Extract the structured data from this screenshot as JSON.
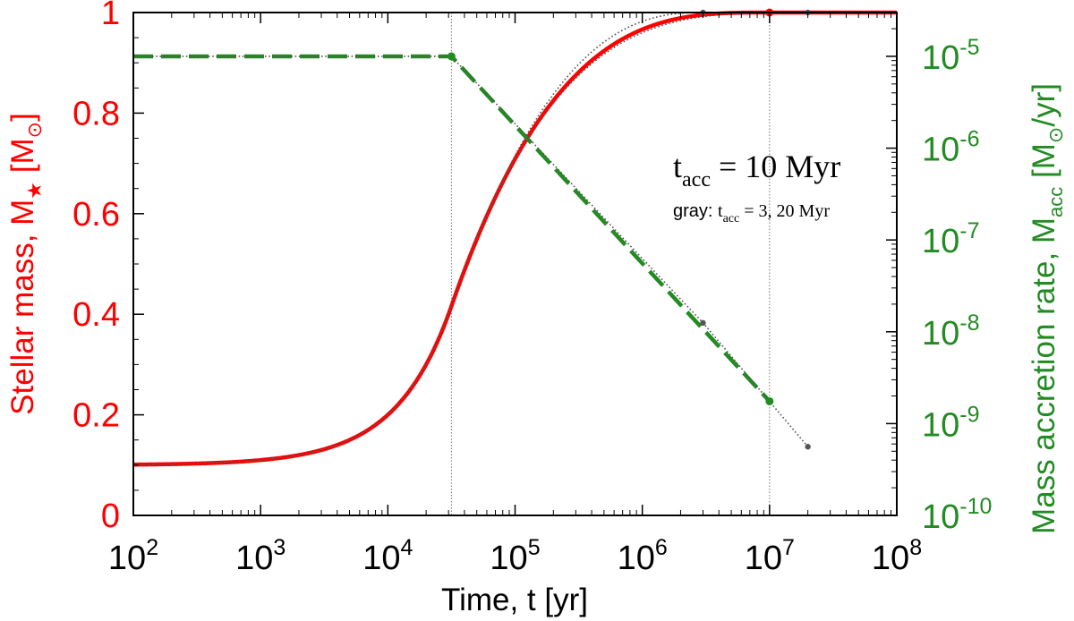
{
  "chart_data": {
    "type": "line",
    "xlabel": "Time, t [yr]",
    "x_scale": "log",
    "xlim": [
      100,
      100000000
    ],
    "x_ticks": [
      {
        "value": 100,
        "base": "10",
        "exp": "2"
      },
      {
        "value": 1000,
        "base": "10",
        "exp": "3"
      },
      {
        "value": 10000,
        "base": "10",
        "exp": "4"
      },
      {
        "value": 100000,
        "base": "10",
        "exp": "5"
      },
      {
        "value": 1000000,
        "base": "10",
        "exp": "6"
      },
      {
        "value": 10000000,
        "base": "10",
        "exp": "7"
      },
      {
        "value": 100000000,
        "base": "10",
        "exp": "8"
      }
    ],
    "y_left": {
      "label_prefix": "Stellar mass, M",
      "label_star": "★",
      "label_unit_open": " [M",
      "label_unit_close": "]",
      "lim": [
        0,
        1
      ],
      "ticks": [
        {
          "value": 0,
          "label": "0"
        },
        {
          "value": 0.2,
          "label": "0.2"
        },
        {
          "value": 0.4,
          "label": "0.4"
        },
        {
          "value": 0.6,
          "label": "0.6"
        },
        {
          "value": 0.8,
          "label": "0.8"
        },
        {
          "value": 1,
          "label": "1"
        }
      ],
      "color": "#ff0000"
    },
    "y_right": {
      "label_prefix": "Mass accretion rate, M",
      "label_sub": "acc",
      "label_unit_open": " [M",
      "label_unit_close": "/yr]",
      "scale": "log",
      "lim": [
        1e-10,
        3e-05
      ],
      "ticks": [
        {
          "value": 1e-10,
          "base": "10",
          "exp": "-10"
        },
        {
          "value": 1e-09,
          "base": "10",
          "exp": "-9"
        },
        {
          "value": 1e-08,
          "base": "10",
          "exp": "-8"
        },
        {
          "value": 1e-07,
          "base": "10",
          "exp": "-7"
        },
        {
          "value": 1e-06,
          "base": "10",
          "exp": "-6"
        },
        {
          "value": 1e-05,
          "base": "10",
          "exp": "-5"
        }
      ],
      "color": "#228b22"
    },
    "series": [
      {
        "name": "Stellar mass (t_acc = 10 Myr)",
        "axis": "left",
        "color": "#ff0000",
        "style": "solid",
        "model": {
          "kind": "mass",
          "M0": 0.1,
          "M1": 1.0,
          "t_start": 31600,
          "t_end": 10000000,
          "Mdot0": 1e-05
        }
      },
      {
        "name": "Mass accretion rate (t_acc = 10 Myr)",
        "axis": "right",
        "color": "#228b22",
        "style": "dashed",
        "points": [
          [
            100,
            1e-05
          ],
          [
            31600,
            1e-05
          ],
          [
            10000000,
            1.75e-09
          ]
        ]
      },
      {
        "name": "Stellar mass (gray, t_acc = 3 Myr)",
        "axis": "left",
        "color": "#555555",
        "style": "dotted",
        "model": {
          "kind": "mass",
          "M0": 0.1,
          "M1": 1.0,
          "t_start": 31600,
          "t_end": 3000000,
          "Mdot0": 1e-05
        }
      },
      {
        "name": "Stellar mass (gray, t_acc = 20 Myr)",
        "axis": "left",
        "color": "#555555",
        "style": "dotted",
        "model": {
          "kind": "mass",
          "M0": 0.1,
          "M1": 1.0,
          "t_start": 31600,
          "t_end": 20000000,
          "Mdot0": 1e-05
        }
      },
      {
        "name": "Mass accretion rate (gray, t_acc = 3, 20 Myr)",
        "axis": "right",
        "color": "#555555",
        "style": "dotted",
        "points": [
          [
            100,
            1e-05
          ],
          [
            31600,
            1e-05
          ],
          [
            3000000,
            1.25e-08
          ],
          [
            20000000,
            5.6e-10
          ]
        ]
      }
    ],
    "markers": [
      {
        "name": "mass-end-point",
        "axis": "left",
        "x": 10000000,
        "y": 1.0,
        "color": "#ff0000"
      },
      {
        "name": "mass-end-point-3myr",
        "axis": "left",
        "x": 3000000,
        "y": 1.0,
        "color": "#555555"
      },
      {
        "name": "mass-end-point-20myr",
        "axis": "left",
        "x": 20000000,
        "y": 1.0,
        "color": "#555555"
      },
      {
        "name": "rate-break-point",
        "axis": "right",
        "x": 31600,
        "y": 1e-05,
        "color": "#228b22"
      },
      {
        "name": "rate-end-point",
        "axis": "right",
        "x": 10000000,
        "y": 1.75e-09,
        "color": "#228b22"
      },
      {
        "name": "rate-end-point-3myr",
        "axis": "right",
        "x": 3000000,
        "y": 1.25e-08,
        "color": "#555555"
      },
      {
        "name": "rate-end-point-20myr",
        "axis": "right",
        "x": 20000000,
        "y": 5.6e-10,
        "color": "#555555"
      }
    ],
    "vlines": [
      31600,
      10000000
    ],
    "annotations": {
      "main_t": "t",
      "main_sub": "acc",
      "main_rest": " = 10 Myr",
      "gray_prefix": "gray: ",
      "gray_t": "t",
      "gray_sub": "acc",
      "gray_rest": " = 3, 20 Myr"
    },
    "sun_symbol": "⊙",
    "legend": "none",
    "grid": false
  }
}
